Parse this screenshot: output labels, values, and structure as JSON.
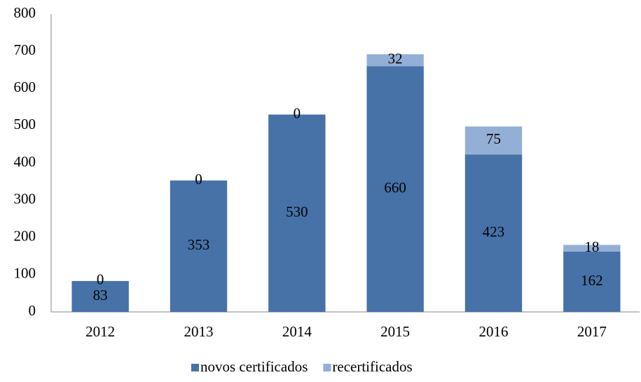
{
  "chart_data": {
    "type": "stacked_bar",
    "categories": [
      "2012",
      "2013",
      "2014",
      "2015",
      "2016",
      "2017"
    ],
    "series": [
      {
        "name": "novos certificados",
        "color": "#4672a8",
        "values": [
          83,
          353,
          530,
          660,
          423,
          162
        ]
      },
      {
        "name": "recertificados",
        "color": "#94afd6",
        "values": [
          0,
          0,
          0,
          32,
          75,
          18
        ]
      }
    ],
    "ylim": [
      0,
      800
    ],
    "yticks": [
      0,
      100,
      200,
      300,
      400,
      500,
      600,
      700,
      800
    ],
    "grid": false,
    "legend": "bottom"
  }
}
